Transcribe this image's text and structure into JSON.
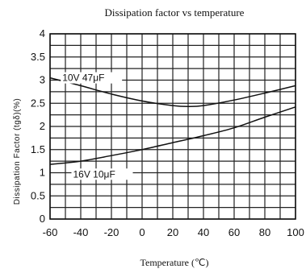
{
  "chart_data": {
    "type": "line",
    "title": "Dissipation factor vs temperature",
    "xlabel": "Temperature (℃)",
    "ylabel": "Dissipation Factor (tgδ)(%)",
    "xlim": [
      -60,
      100
    ],
    "ylim": [
      0,
      4
    ],
    "x_ticks": [
      -60,
      -40,
      -20,
      0,
      20,
      40,
      60,
      80,
      100
    ],
    "y_ticks": [
      0,
      0.5,
      1,
      1.5,
      2,
      2.5,
      3,
      3.5,
      4
    ],
    "y_tick_labels": [
      "0",
      "0.5",
      "1",
      "1.5",
      "2",
      "2.5",
      "3",
      "3.5",
      "4"
    ],
    "grid": true,
    "series": [
      {
        "name": "10V 47μF",
        "x": [
          -60,
          -40,
          -20,
          0,
          20,
          30,
          40,
          60,
          80,
          100
        ],
        "y": [
          3.05,
          2.88,
          2.7,
          2.55,
          2.45,
          2.43,
          2.45,
          2.57,
          2.72,
          2.88
        ]
      },
      {
        "name": "16V 10μF",
        "x": [
          -60,
          -40,
          -20,
          0,
          20,
          40,
          60,
          80,
          100
        ],
        "y": [
          1.18,
          1.25,
          1.37,
          1.5,
          1.65,
          1.8,
          1.97,
          2.2,
          2.42
        ]
      }
    ]
  }
}
